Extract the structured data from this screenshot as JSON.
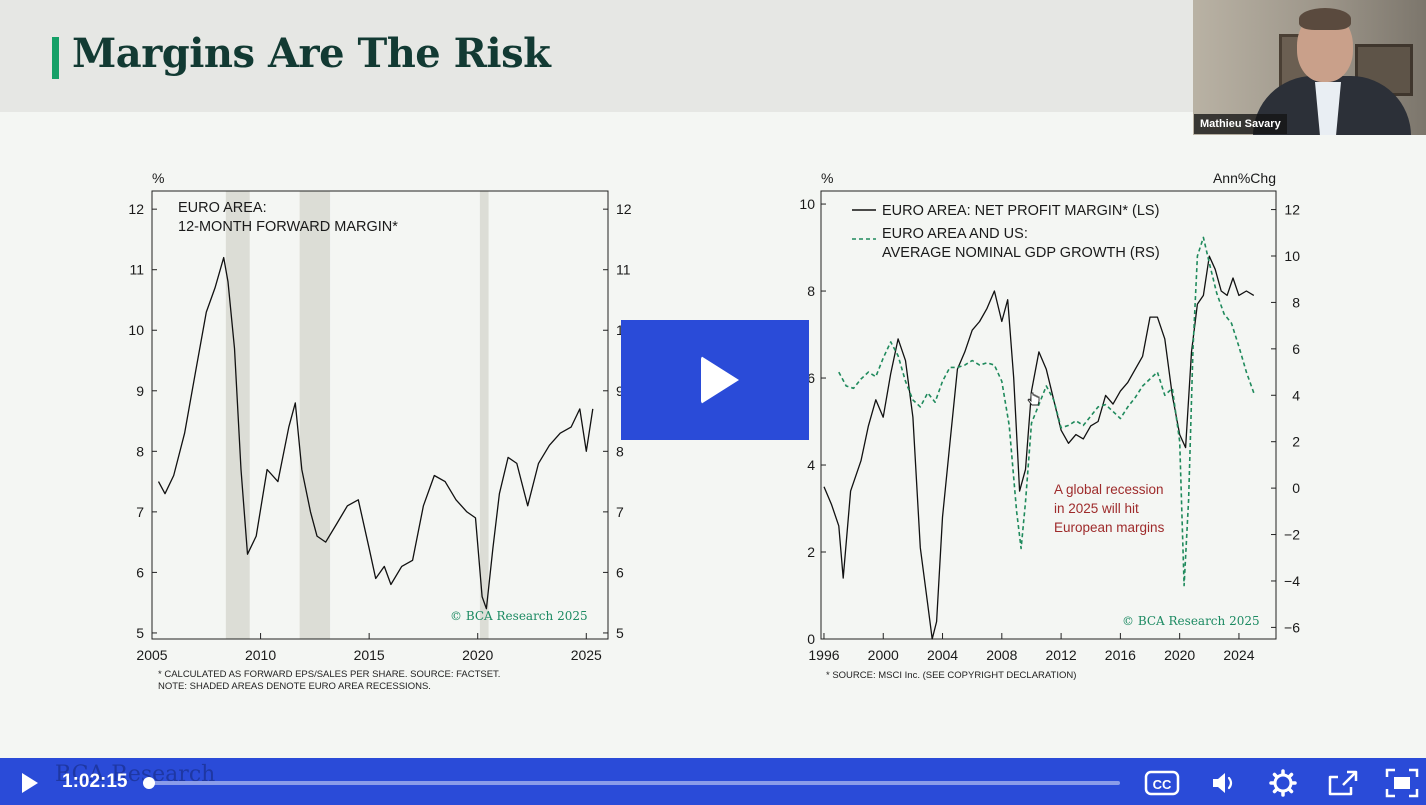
{
  "slide": {
    "title": "Margins Are The Risk",
    "ghost_brand": "BCA Research"
  },
  "webcam": {
    "speaker_name": "Mathieu Savary"
  },
  "colors": {
    "accent": "#15a067",
    "title": "#123a33",
    "player": "#2a4bd8",
    "recession_shade": "#dcddd6",
    "annotation": "#9e2b2b",
    "dashed_series": "#1f8a5c"
  },
  "charts": {
    "left": {
      "unit_left": "%",
      "legend_line1": "EURO AREA:",
      "legend_line2": "12-MONTH FORWARD MARGIN*",
      "copyright": "© BCA Research 2025",
      "footnote1": "* CALCULATED AS FORWARD EPS/SALES PER SHARE. SOURCE: FACTSET.",
      "footnote2": "NOTE: SHADED AREAS DENOTE EURO AREA RECESSIONS."
    },
    "right": {
      "unit_left": "%",
      "unit_right": "Ann%Chg",
      "legend_series1": "EURO AREA: NET PROFIT MARGIN* (LS)",
      "legend_series2_line1": "EURO AREA AND US:",
      "legend_series2_line2": "AVERAGE NOMINAL GDP GROWTH (RS)",
      "annotation_line1": "A global recession",
      "annotation_line2": "in 2025 will hit",
      "annotation_line3": "European margins",
      "copyright": "© BCA Research 2025",
      "footnote": "* SOURCE: MSCI Inc. (SEE COPYRIGHT DECLARATION)"
    }
  },
  "player": {
    "time": "1:02:15",
    "progress": 0.002,
    "icons": [
      "play-icon",
      "closed-captions-icon",
      "volume-icon",
      "settings-icon",
      "share-icon",
      "fullscreen-icon"
    ]
  },
  "chart_data": [
    {
      "type": "line",
      "title": "EURO AREA: 12-MONTH FORWARD MARGIN*",
      "ylabel": "%",
      "xlim": [
        2005,
        2026
      ],
      "ylim": [
        4.9,
        12.3
      ],
      "x_ticks": [
        2005,
        2010,
        2015,
        2020,
        2025
      ],
      "y_ticks": [
        5,
        6,
        7,
        8,
        9,
        10,
        11,
        12
      ],
      "shaded_periods": [
        [
          2008.4,
          2009.5
        ],
        [
          2011.8,
          2013.2
        ],
        [
          2020.1,
          2020.5
        ]
      ],
      "series": [
        {
          "name": "EURO AREA: 12-MONTH FORWARD MARGIN*",
          "x": [
            2005.3,
            2005.6,
            2006.0,
            2006.5,
            2007.0,
            2007.5,
            2007.9,
            2008.3,
            2008.5,
            2008.8,
            2009.1,
            2009.4,
            2009.8,
            2010.3,
            2010.8,
            2011.3,
            2011.6,
            2011.9,
            2012.3,
            2012.6,
            2013.0,
            2013.5,
            2014.0,
            2014.5,
            2015.0,
            2015.3,
            2015.7,
            2016.0,
            2016.5,
            2017.0,
            2017.5,
            2018.0,
            2018.5,
            2019.0,
            2019.5,
            2019.9,
            2020.2,
            2020.4,
            2020.7,
            2021.0,
            2021.4,
            2021.8,
            2022.3,
            2022.8,
            2023.3,
            2023.8,
            2024.3,
            2024.7,
            2025.0,
            2025.3
          ],
          "y": [
            7.5,
            7.3,
            7.6,
            8.3,
            9.3,
            10.3,
            10.7,
            11.2,
            10.8,
            9.7,
            7.7,
            6.3,
            6.6,
            7.7,
            7.5,
            8.4,
            8.8,
            7.7,
            7.0,
            6.6,
            6.5,
            6.8,
            7.1,
            7.2,
            6.4,
            5.9,
            6.1,
            5.8,
            6.1,
            6.2,
            7.1,
            7.6,
            7.5,
            7.2,
            7.0,
            6.9,
            5.6,
            5.4,
            6.4,
            7.3,
            7.9,
            7.8,
            7.1,
            7.8,
            8.1,
            8.3,
            8.4,
            8.7,
            8.0,
            8.7
          ]
        }
      ]
    },
    {
      "type": "line",
      "title": "",
      "ylabel": "%",
      "ylabel_right": "Ann%Chg",
      "xlim": [
        1995.8,
        2026.5
      ],
      "ylim": [
        0,
        10.3
      ],
      "ylim_right": [
        -6.5,
        12.8
      ],
      "x_ticks": [
        1996,
        2000,
        2004,
        2008,
        2012,
        2016,
        2020,
        2024
      ],
      "y_ticks": [
        0,
        2,
        4,
        6,
        8,
        10
      ],
      "y_ticks_right": [
        -6,
        -4,
        -2,
        0,
        2,
        4,
        6,
        8,
        10,
        12
      ],
      "series": [
        {
          "name": "EURO AREA: NET PROFIT MARGIN* (LS)",
          "axis": "left",
          "x": [
            1996.0,
            1996.5,
            1997.0,
            1997.3,
            1997.8,
            1998.5,
            1999.0,
            1999.5,
            2000.0,
            2000.5,
            2001.0,
            2001.5,
            2002.0,
            2002.5,
            2003.0,
            2003.3,
            2003.6,
            2004.0,
            2004.5,
            2005.0,
            2005.5,
            2006.0,
            2006.5,
            2007.0,
            2007.5,
            2008.0,
            2008.4,
            2008.8,
            2009.2,
            2009.6,
            2010.0,
            2010.5,
            2011.0,
            2011.5,
            2012.0,
            2012.5,
            2013.0,
            2013.5,
            2014.0,
            2014.5,
            2015.0,
            2015.5,
            2016.0,
            2016.5,
            2017.0,
            2017.5,
            2018.0,
            2018.5,
            2019.0,
            2019.5,
            2020.0,
            2020.4,
            2020.8,
            2021.2,
            2021.6,
            2022.0,
            2022.4,
            2022.8,
            2023.2,
            2023.6,
            2024.0,
            2024.5,
            2025.0
          ],
          "y": [
            3.5,
            3.1,
            2.6,
            1.4,
            3.4,
            4.1,
            4.9,
            5.5,
            5.1,
            6.1,
            6.9,
            6.4,
            5.1,
            2.1,
            0.8,
            0.0,
            0.4,
            2.8,
            4.5,
            6.2,
            6.6,
            7.1,
            7.3,
            7.6,
            8.0,
            7.3,
            7.8,
            6.0,
            3.4,
            3.9,
            5.7,
            6.6,
            6.2,
            5.5,
            4.8,
            4.5,
            4.7,
            4.6,
            4.9,
            5.0,
            5.6,
            5.4,
            5.7,
            5.9,
            6.2,
            6.5,
            7.4,
            7.4,
            6.9,
            5.6,
            4.7,
            4.4,
            6.6,
            7.7,
            7.9,
            8.8,
            8.5,
            8.0,
            7.9,
            8.3,
            7.9,
            8.0,
            7.9
          ]
        },
        {
          "name": "EURO AREA AND US: AVERAGE NOMINAL GDP GROWTH (RS)",
          "axis": "right",
          "style": "dashed",
          "x": [
            1997.0,
            1997.5,
            1998.0,
            1998.5,
            1999.0,
            1999.5,
            2000.0,
            2000.5,
            2001.0,
            2001.5,
            2002.0,
            2002.5,
            2003.0,
            2003.5,
            2004.0,
            2004.5,
            2005.0,
            2005.5,
            2006.0,
            2006.5,
            2007.0,
            2007.5,
            2008.0,
            2008.5,
            2009.0,
            2009.3,
            2009.6,
            2010.0,
            2010.5,
            2011.0,
            2011.5,
            2012.0,
            2012.5,
            2013.0,
            2013.5,
            2014.0,
            2014.5,
            2015.0,
            2015.5,
            2016.0,
            2016.5,
            2017.0,
            2017.5,
            2018.0,
            2018.5,
            2019.0,
            2019.5,
            2020.0,
            2020.3,
            2020.6,
            2020.9,
            2021.2,
            2021.6,
            2022.0,
            2022.5,
            2023.0,
            2023.5,
            2024.0,
            2024.5,
            2025.0
          ],
          "y": [
            5.0,
            4.4,
            4.3,
            4.7,
            5.0,
            4.8,
            5.6,
            6.3,
            5.7,
            4.6,
            3.8,
            3.5,
            4.1,
            3.7,
            4.6,
            5.2,
            5.2,
            5.3,
            5.5,
            5.3,
            5.4,
            5.3,
            4.6,
            2.7,
            -1.0,
            -2.6,
            -0.6,
            2.8,
            3.6,
            4.4,
            3.8,
            2.6,
            2.7,
            2.9,
            2.7,
            3.1,
            3.5,
            3.6,
            3.3,
            3.0,
            3.5,
            3.9,
            4.4,
            4.7,
            5.0,
            4.0,
            4.3,
            2.0,
            -4.2,
            -0.5,
            6.0,
            10.0,
            10.8,
            9.7,
            8.4,
            7.5,
            7.1,
            6.1,
            5.0,
            4.1
          ]
        }
      ]
    }
  ]
}
